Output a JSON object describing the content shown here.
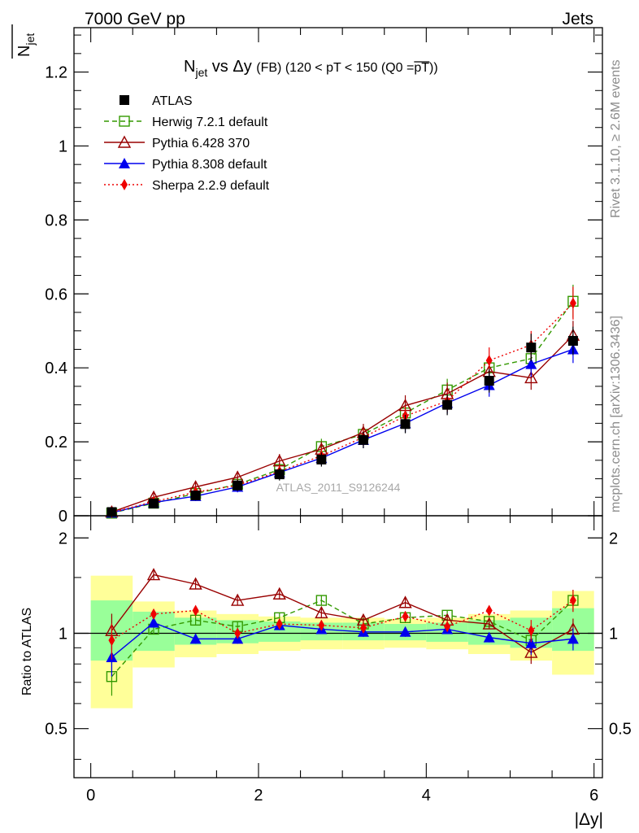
{
  "header": {
    "left": "7000 GeV pp",
    "right": "Jets"
  },
  "side_labels": {
    "rivet": "Rivet 3.1.10, ≥ 2.6M events",
    "mcplots": "mcplots.cern.ch [arXiv:1306.3436]"
  },
  "chart_data": [
    {
      "type": "scatter",
      "title": {
        "prefix": "N",
        "sub": "jet",
        "mid": " vs Δy ",
        "fb": "(FB)",
        "suffix1": " (120 < pT < 150 (Q0 =",
        "bar": "pT",
        "suffix2": "))"
      },
      "ylabel": {
        "main": "N",
        "sub": "jet"
      },
      "watermark": "ATLAS_2011_S9126244",
      "xlim": [
        -0.2,
        6.1
      ],
      "ylim": [
        0,
        1.32
      ],
      "yticks": [
        0,
        0.2,
        0.4,
        0.6,
        0.8,
        1,
        1.2
      ],
      "ytick_labels": [
        "0",
        "0.2",
        "0.4",
        "0.6",
        "0.8",
        "1",
        "1.2"
      ],
      "legend_position": "top-left",
      "x": [
        0.25,
        0.75,
        1.25,
        1.75,
        2.25,
        2.75,
        3.25,
        3.75,
        4.25,
        4.75,
        5.25,
        5.75
      ],
      "series": [
        {
          "name": "ATLAS",
          "color": "#000000",
          "marker": "filled-square",
          "line": "none",
          "values": [
            0.01,
            0.033,
            0.055,
            0.082,
            0.112,
            0.152,
            0.205,
            0.248,
            0.3,
            0.365,
            0.455,
            0.473
          ]
        },
        {
          "name": "Herwig 7.2.1 default",
          "color": "#339900",
          "marker": "open-square",
          "line": "dashed",
          "values": [
            0.007,
            0.034,
            0.06,
            0.085,
            0.125,
            0.187,
            0.22,
            0.278,
            0.34,
            0.4,
            0.425,
            0.58
          ]
        },
        {
          "name": "Pythia 6.428 370",
          "color": "#990000",
          "marker": "open-triangle",
          "line": "solid",
          "values": [
            0.01,
            0.05,
            0.078,
            0.104,
            0.148,
            0.18,
            0.225,
            0.298,
            0.33,
            0.39,
            0.373,
            0.488
          ]
        },
        {
          "name": "Pythia 8.308 default",
          "color": "#0000ee",
          "marker": "filled-triangle",
          "line": "solid",
          "values": [
            0.008,
            0.036,
            0.053,
            0.078,
            0.117,
            0.156,
            0.205,
            0.25,
            0.305,
            0.353,
            0.41,
            0.45
          ]
        },
        {
          "name": "Sherpa 2.2.9 default",
          "color": "#ee0000",
          "marker": "filled-diamond",
          "line": "dotted",
          "values": [
            0.009,
            0.038,
            0.064,
            0.082,
            0.12,
            0.162,
            0.212,
            0.27,
            0.31,
            0.42,
            0.462,
            0.575
          ]
        }
      ]
    },
    {
      "type": "scatter",
      "ylabel": "Ratio to ATLAS",
      "xlabel": "|Δy|",
      "xlim": [
        -0.2,
        6.1
      ],
      "ylim": [
        0.35,
        2.35
      ],
      "yticks": [
        0.5,
        1,
        2
      ],
      "ytick_labels": [
        "0.5",
        "1",
        "2"
      ],
      "xticks": [
        0,
        2,
        4,
        6
      ],
      "xtick_labels": [
        "0",
        "2",
        "4",
        "6"
      ],
      "bands": {
        "edges": [
          0,
          0.5,
          1,
          1.5,
          2,
          2.5,
          3,
          3.5,
          4,
          4.5,
          5,
          5.5,
          6
        ],
        "yellow_lo": [
          0.58,
          0.78,
          0.84,
          0.86,
          0.88,
          0.89,
          0.89,
          0.9,
          0.89,
          0.86,
          0.82,
          0.74
        ],
        "yellow_hi": [
          1.52,
          1.26,
          1.18,
          1.15,
          1.13,
          1.12,
          1.12,
          1.11,
          1.12,
          1.15,
          1.18,
          1.36
        ],
        "green_lo": [
          0.82,
          0.88,
          0.92,
          0.93,
          0.94,
          0.95,
          0.95,
          0.95,
          0.94,
          0.92,
          0.9,
          0.88
        ],
        "green_hi": [
          1.27,
          1.17,
          1.12,
          1.1,
          1.09,
          1.08,
          1.08,
          1.07,
          1.08,
          1.1,
          1.12,
          1.2
        ]
      },
      "x": [
        0.25,
        0.75,
        1.25,
        1.75,
        2.25,
        2.75,
        3.25,
        3.75,
        4.25,
        4.75,
        5.25,
        5.75
      ],
      "series": [
        {
          "name": "Herwig 7.2.1 default",
          "color": "#339900",
          "marker": "open-square",
          "line": "dashed",
          "values": [
            0.73,
            1.03,
            1.1,
            1.05,
            1.12,
            1.27,
            1.07,
            1.12,
            1.14,
            1.09,
            0.95,
            1.27
          ]
        },
        {
          "name": "Pythia 6.428 370",
          "color": "#990000",
          "marker": "open-triangle",
          "line": "solid",
          "values": [
            1.02,
            1.53,
            1.43,
            1.27,
            1.33,
            1.16,
            1.1,
            1.25,
            1.1,
            1.07,
            0.87,
            1.03
          ]
        },
        {
          "name": "Pythia 8.308 default",
          "color": "#0000ee",
          "marker": "filled-triangle",
          "line": "solid",
          "values": [
            0.84,
            1.08,
            0.96,
            0.96,
            1.06,
            1.03,
            1.01,
            1.01,
            1.03,
            0.97,
            0.93,
            0.96
          ]
        },
        {
          "name": "Sherpa 2.2.9 default",
          "color": "#ee0000",
          "marker": "filled-diamond",
          "line": "dotted",
          "values": [
            0.95,
            1.15,
            1.18,
            1.0,
            1.07,
            1.06,
            1.04,
            1.13,
            1.05,
            1.18,
            1.02,
            1.27
          ]
        }
      ]
    }
  ]
}
